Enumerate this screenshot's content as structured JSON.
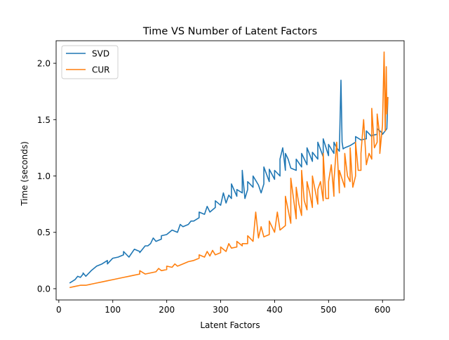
{
  "chart_data": {
    "type": "line",
    "title": "Time VS Number of Latent Factors",
    "xlabel": "Latent Factors",
    "ylabel": "Time (seconds)",
    "xlim": [
      -5,
      640
    ],
    "ylim": [
      -0.1,
      2.2
    ],
    "xticks": [
      0,
      100,
      200,
      300,
      400,
      500,
      600
    ],
    "yticks": [
      0.0,
      0.5,
      1.0,
      1.5,
      2.0
    ],
    "xtick_labels": [
      "0",
      "100",
      "200",
      "300",
      "400",
      "500",
      "600"
    ],
    "ytick_labels": [
      "0.0",
      "0.5",
      "1.0",
      "1.5",
      "2.0"
    ],
    "grid": false,
    "legend_position": "top-left",
    "series": [
      {
        "name": "SVD",
        "color": "#1f77b4",
        "x": [
          20,
          30,
          40,
          45,
          50,
          60,
          70,
          80,
          90,
          100,
          110,
          120,
          130,
          140,
          150,
          160,
          170,
          180,
          190,
          200,
          210,
          220,
          230,
          240,
          250,
          260,
          270,
          280,
          290,
          300,
          310,
          320,
          330,
          340,
          350,
          360,
          370,
          380,
          390,
          400,
          410,
          420,
          430,
          440,
          450,
          460,
          470,
          480,
          490,
          500,
          510,
          515,
          520,
          523,
          525,
          527,
          530,
          540,
          550,
          560,
          570,
          580,
          590,
          600,
          605,
          608,
          610
        ],
        "y": [
          0.05,
          0.08,
          0.1,
          0.13,
          0.11,
          0.16,
          0.2,
          0.22,
          0.25,
          0.27,
          0.28,
          0.3,
          0.28,
          0.35,
          0.33,
          0.38,
          0.4,
          0.42,
          0.44,
          0.48,
          0.52,
          0.5,
          0.55,
          0.57,
          0.6,
          0.63,
          0.66,
          0.68,
          0.72,
          0.74,
          0.76,
          0.8,
          0.82,
          0.85,
          0.88,
          0.9,
          0.92,
          0.93,
          0.95,
          0.97,
          1.0,
          1.05,
          1.07,
          1.05,
          1.08,
          1.1,
          1.13,
          1.15,
          1.17,
          1.18,
          1.2,
          1.25,
          1.22,
          1.85,
          1.3,
          1.24,
          1.25,
          1.27,
          1.3,
          1.32,
          1.33,
          1.35,
          1.37,
          1.38,
          1.4,
          1.42,
          1.7
        ],
        "spikes": [
          [
            35,
            0.11
          ],
          [
            45,
            0.14
          ],
          [
            90,
            0.22
          ],
          [
            120,
            0.33
          ],
          [
            150,
            0.32
          ],
          [
            165,
            0.38
          ],
          [
            175,
            0.45
          ],
          [
            190,
            0.47
          ],
          [
            210,
            0.52
          ],
          [
            225,
            0.57
          ],
          [
            245,
            0.6
          ],
          [
            260,
            0.68
          ],
          [
            275,
            0.73
          ],
          [
            290,
            0.78
          ],
          [
            300,
            0.74
          ],
          [
            305,
            0.85
          ],
          [
            315,
            0.83
          ],
          [
            320,
            0.93
          ],
          [
            330,
            0.88
          ],
          [
            340,
            1.05
          ],
          [
            345,
            0.8
          ],
          [
            350,
            0.95
          ],
          [
            360,
            1.0
          ],
          [
            375,
            0.85
          ],
          [
            380,
            1.08
          ],
          [
            390,
            1.06
          ],
          [
            400,
            1.05
          ],
          [
            410,
            1.15
          ],
          [
            415,
            1.25
          ],
          [
            420,
            1.2
          ],
          [
            425,
            1.15
          ],
          [
            440,
            1.15
          ],
          [
            450,
            1.2
          ],
          [
            460,
            1.25
          ],
          [
            470,
            1.21
          ],
          [
            480,
            1.3
          ],
          [
            490,
            1.33
          ],
          [
            500,
            1.28
          ],
          [
            510,
            1.3
          ],
          [
            550,
            1.35
          ],
          [
            560,
            1.32
          ],
          [
            570,
            1.4
          ],
          [
            580,
            1.36
          ],
          [
            590,
            1.42
          ],
          [
            600,
            1.37
          ]
        ]
      },
      {
        "name": "CUR",
        "color": "#ff7f0e",
        "x": [
          20,
          30,
          40,
          50,
          60,
          70,
          80,
          90,
          100,
          110,
          120,
          130,
          140,
          150,
          160,
          170,
          180,
          190,
          200,
          210,
          220,
          230,
          240,
          250,
          260,
          270,
          280,
          290,
          300,
          310,
          320,
          330,
          340,
          350,
          360,
          370,
          380,
          390,
          400,
          410,
          420,
          430,
          440,
          450,
          460,
          470,
          480,
          490,
          500,
          510,
          520,
          530,
          540,
          550,
          560,
          570,
          575,
          580,
          585,
          590,
          595,
          600,
          603,
          605,
          607,
          608,
          610
        ],
        "y": [
          0.01,
          0.02,
          0.03,
          0.03,
          0.04,
          0.05,
          0.06,
          0.07,
          0.08,
          0.09,
          0.1,
          0.11,
          0.12,
          0.13,
          0.13,
          0.14,
          0.15,
          0.16,
          0.17,
          0.19,
          0.2,
          0.22,
          0.24,
          0.25,
          0.27,
          0.28,
          0.29,
          0.3,
          0.32,
          0.33,
          0.36,
          0.37,
          0.38,
          0.4,
          0.42,
          0.45,
          0.46,
          0.48,
          0.5,
          0.52,
          0.56,
          0.58,
          0.62,
          0.65,
          0.7,
          0.72,
          0.75,
          0.78,
          0.8,
          0.82,
          0.85,
          0.9,
          0.95,
          1.0,
          1.05,
          1.1,
          1.2,
          1.15,
          1.25,
          1.3,
          1.35,
          1.45,
          2.1,
          1.4,
          1.97,
          1.55,
          1.7
        ],
        "spikes": [
          [
            150,
            0.16
          ],
          [
            185,
            0.18
          ],
          [
            200,
            0.2
          ],
          [
            215,
            0.22
          ],
          [
            260,
            0.3
          ],
          [
            275,
            0.33
          ],
          [
            285,
            0.34
          ],
          [
            300,
            0.37
          ],
          [
            315,
            0.4
          ],
          [
            330,
            0.42
          ],
          [
            340,
            0.4
          ],
          [
            350,
            0.47
          ],
          [
            365,
            0.68
          ],
          [
            375,
            0.55
          ],
          [
            390,
            0.6
          ],
          [
            405,
            0.68
          ],
          [
            420,
            0.82
          ],
          [
            425,
            0.7
          ],
          [
            430,
            0.98
          ],
          [
            440,
            0.9
          ],
          [
            445,
            0.75
          ],
          [
            450,
            1.05
          ],
          [
            455,
            0.78
          ],
          [
            460,
            0.95
          ],
          [
            465,
            0.85
          ],
          [
            470,
            1.0
          ],
          [
            480,
            0.88
          ],
          [
            485,
            0.95
          ],
          [
            490,
            1.2
          ],
          [
            495,
            0.8
          ],
          [
            500,
            0.95
          ],
          [
            505,
            1.1
          ],
          [
            510,
            0.95
          ],
          [
            515,
            1.3
          ],
          [
            520,
            1.05
          ],
          [
            530,
            1.2
          ],
          [
            535,
            1.0
          ],
          [
            540,
            1.25
          ],
          [
            545,
            0.9
          ],
          [
            550,
            1.3
          ],
          [
            555,
            1.05
          ],
          [
            560,
            1.2
          ],
          [
            565,
            1.5
          ],
          [
            570,
            1.1
          ],
          [
            580,
            1.6
          ],
          [
            590,
            1.55
          ],
          [
            595,
            1.2
          ]
        ]
      }
    ]
  }
}
